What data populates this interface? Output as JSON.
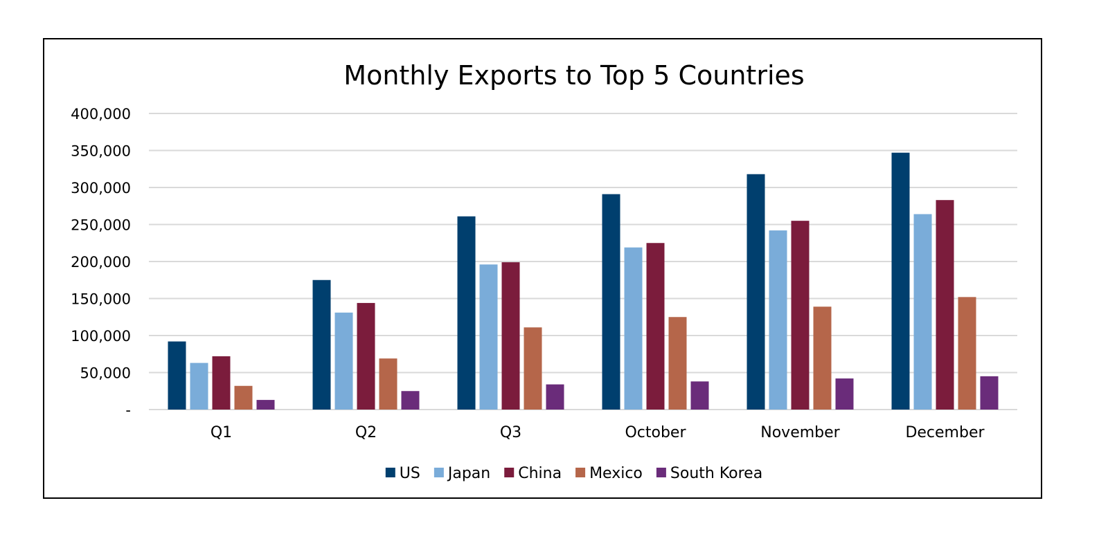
{
  "chart_data": {
    "type": "bar",
    "title": "Monthly Exports to Top 5 Countries",
    "xlabel": "",
    "ylabel": "",
    "categories": [
      "Q1",
      "Q2",
      "Q3",
      "October",
      "November",
      "December"
    ],
    "series": [
      {
        "name": "US",
        "color": "#003f6e",
        "values": [
          92000,
          175000,
          261000,
          291000,
          318000,
          347000
        ]
      },
      {
        "name": "Japan",
        "color": "#7aacd9",
        "values": [
          63000,
          131000,
          196000,
          219000,
          242000,
          264000
        ]
      },
      {
        "name": "China",
        "color": "#7b1c3c",
        "values": [
          72000,
          144000,
          199000,
          225000,
          255000,
          283000
        ]
      },
      {
        "name": "Mexico",
        "color": "#b5664a",
        "values": [
          32000,
          69000,
          111000,
          125000,
          139000,
          152000
        ]
      },
      {
        "name": "South Korea",
        "color": "#6a2c7a",
        "values": [
          13000,
          25000,
          34000,
          38000,
          42000,
          45000
        ]
      }
    ],
    "ylim": [
      0,
      400000
    ],
    "y_ticks": [
      {
        "value": 0,
        "label": "-"
      },
      {
        "value": 50000,
        "label": "50,000"
      },
      {
        "value": 100000,
        "label": "100,000"
      },
      {
        "value": 150000,
        "label": "150,000"
      },
      {
        "value": 200000,
        "label": "200,000"
      },
      {
        "value": 250000,
        "label": "250,000"
      },
      {
        "value": 300000,
        "label": "300,000"
      },
      {
        "value": 350000,
        "label": "350,000"
      },
      {
        "value": 400000,
        "label": "400,000"
      }
    ],
    "grid": true,
    "gridline_color": "#d9d9d9",
    "legend_position": "bottom"
  }
}
